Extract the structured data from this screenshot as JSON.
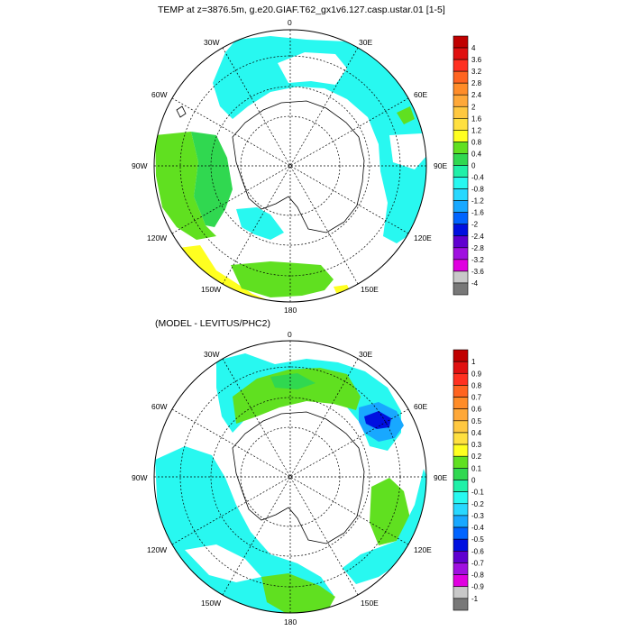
{
  "panel1": {
    "title": "TEMP at z=3876.5m, g.e20.GIAF.T62_gx1v6.127.casp.ustar.01 [1-5]",
    "lon_labels": {
      "top": "0",
      "tr": "30E",
      "r1": "60E",
      "right": "90E",
      "r2": "120E",
      "br": "150E",
      "bottom": "180",
      "bl": "150W",
      "l2": "120W",
      "left": "90W",
      "l1": "60W",
      "tl": "30W"
    },
    "colorbar": {
      "labels": [
        "4",
        "3.6",
        "3.2",
        "2.8",
        "2.4",
        "2",
        "1.6",
        "1.2",
        "0.8",
        "0.4",
        "0",
        "-0.4",
        "-0.8",
        "-1.2",
        "-1.6",
        "-2",
        "-2.4",
        "-2.8",
        "-3.2",
        "-3.6",
        "-4"
      ],
      "colors": [
        "#c00000",
        "#e01010",
        "#ff3020",
        "#ff6420",
        "#ff8c28",
        "#ffa838",
        "#ffc840",
        "#ffe040",
        "#ffff20",
        "#60e020",
        "#30d850",
        "#20f0a8",
        "#28f8f0",
        "#28d8ff",
        "#18a8ff",
        "#0064ff",
        "#0010e0",
        "#6000d0",
        "#a010e0",
        "#e000e0",
        "#c8c8c8",
        "#787878"
      ]
    }
  },
  "panel2": {
    "title": "(MODEL - LEVITUS/PHC2)",
    "lon_labels": {
      "top": "0",
      "tr": "30E",
      "r1": "60E",
      "right": "90E",
      "r2": "120E",
      "br": "150E",
      "bottom": "180",
      "bl": "150W",
      "l2": "120W",
      "left": "90W",
      "l1": "60W",
      "tl": "30W"
    },
    "colorbar": {
      "labels": [
        "1",
        "0.9",
        "0.8",
        "0.7",
        "0.6",
        "0.5",
        "0.4",
        "0.3",
        "0.2",
        "0.1",
        "0",
        "-0.1",
        "-0.2",
        "-0.3",
        "-0.4",
        "-0.5",
        "-0.6",
        "-0.7",
        "-0.8",
        "-0.9",
        "-1"
      ],
      "colors": [
        "#c00000",
        "#e01010",
        "#ff3020",
        "#ff6420",
        "#ff8c28",
        "#ffa838",
        "#ffc840",
        "#ffe040",
        "#ffff20",
        "#60e020",
        "#30d850",
        "#20f0a8",
        "#28f8f0",
        "#28d8ff",
        "#18a8ff",
        "#0064ff",
        "#0010e0",
        "#6000d0",
        "#a010e0",
        "#e000e0",
        "#c8c8c8",
        "#787878"
      ]
    }
  }
}
